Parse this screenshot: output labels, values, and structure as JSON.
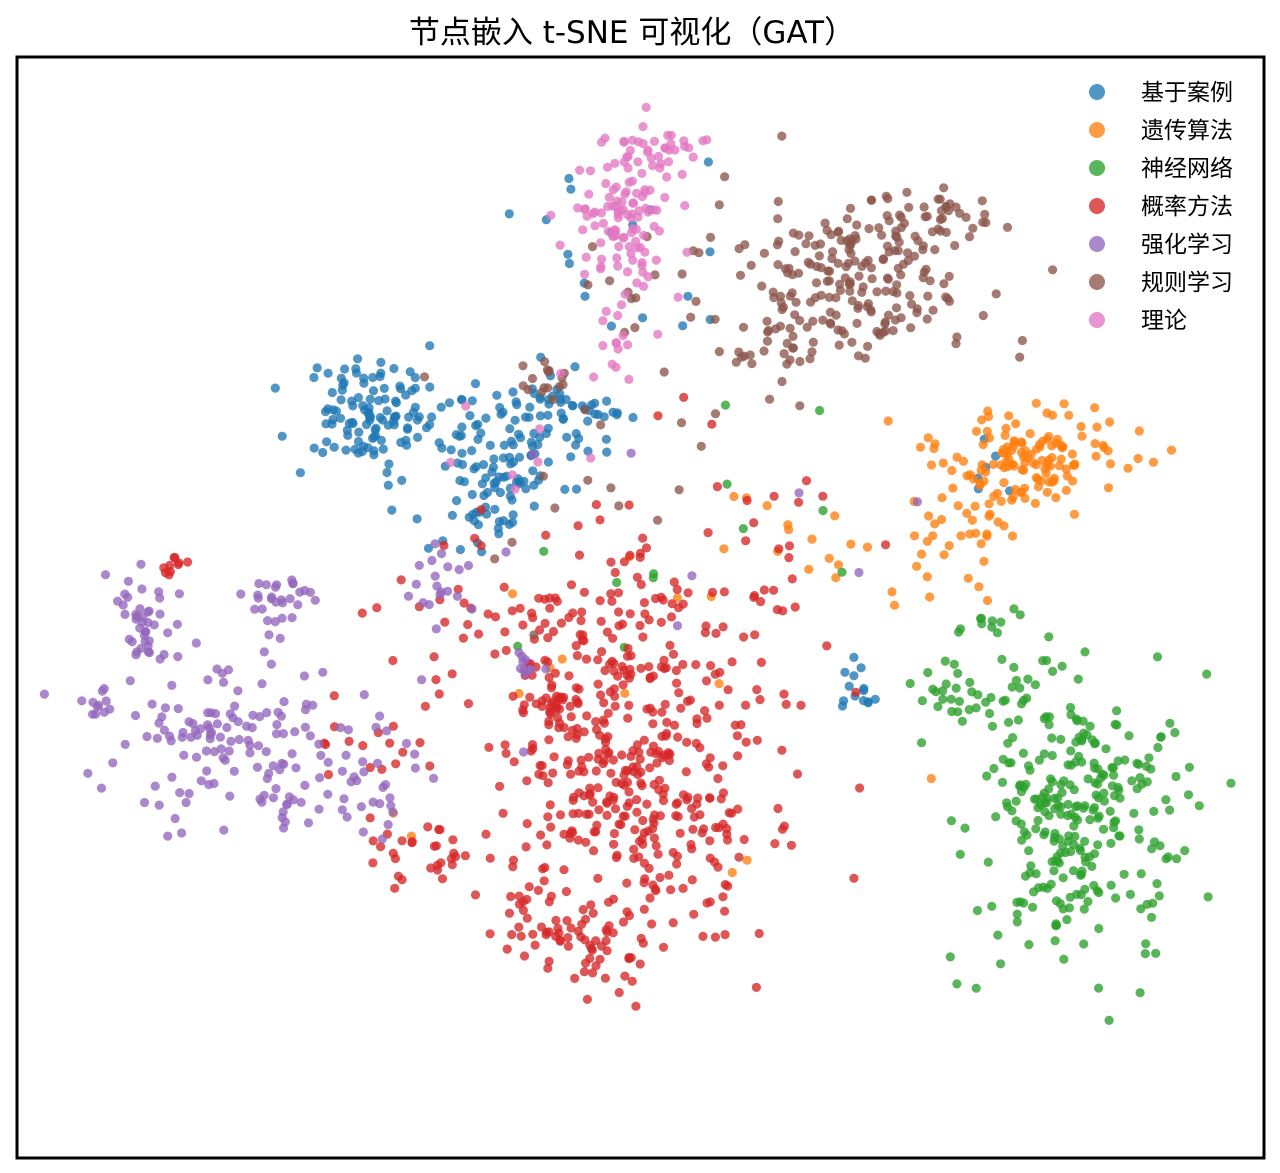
{
  "chart_data": {
    "type": "scatter",
    "title": "节点嵌入 t-SNE 可视化（GAT）",
    "xlabel": "",
    "ylabel": "",
    "xlim": [
      -100,
      100
    ],
    "ylim": [
      -100,
      100
    ],
    "axes_visible": false,
    "grid": false,
    "legend_position": "top-right",
    "marker_alpha": 0.78,
    "series": [
      {
        "name": "基于案例",
        "color": "#1f77b4",
        "clusters": [
          {
            "cx": -47,
            "cy": 38,
            "sx": 6.5,
            "sy": 5.5,
            "n": 115
          },
          {
            "cx": -25,
            "cy": 30,
            "sx": 6,
            "sy": 6,
            "n": 90
          },
          {
            "cx": -12,
            "cy": 38,
            "sx": 5,
            "sy": 4,
            "n": 45
          },
          {
            "cx": -31,
            "cy": 17,
            "sx": 5,
            "sy": 4,
            "n": 25
          },
          {
            "cx": -3,
            "cy": 72,
            "sx": 10,
            "sy": 14,
            "n": 18
          },
          {
            "cx": 37,
            "cy": -17,
            "sx": 3,
            "sy": 2.5,
            "n": 14
          },
          {
            "cx": 60,
            "cy": 25,
            "sx": 4,
            "sy": 3,
            "n": 6
          }
        ]
      },
      {
        "name": "遗传算法",
        "color": "#ff7f0e",
        "clusters": [
          {
            "cx": 67,
            "cy": 28,
            "sx": 9,
            "sy": 5,
            "n": 120
          },
          {
            "cx": 57,
            "cy": 13,
            "sx": 6,
            "sy": 5,
            "n": 35
          },
          {
            "cx": 76,
            "cy": 35,
            "sx": 4,
            "sy": 4,
            "n": 15
          },
          {
            "cx": 28,
            "cy": 12,
            "sx": 7,
            "sy": 6,
            "n": 16
          },
          {
            "cx": 5,
            "cy": -15,
            "sx": 25,
            "sy": 22,
            "n": 14
          }
        ]
      },
      {
        "name": "神经网络",
        "color": "#2ca02c",
        "clusters": [
          {
            "cx": 76,
            "cy": -42,
            "sx": 9.5,
            "sy": 14,
            "n": 285
          },
          {
            "cx": 57,
            "cy": -18,
            "sx": 6,
            "sy": 5,
            "n": 35
          },
          {
            "cx": 62,
            "cy": -3,
            "sx": 2.5,
            "sy": 2,
            "n": 10
          },
          {
            "cx": 8,
            "cy": 15,
            "sx": 16,
            "sy": 18,
            "n": 12
          }
        ]
      },
      {
        "name": "概率方法",
        "color": "#d62728",
        "clusters": [
          {
            "cx": 0,
            "cy": -35,
            "sx": 12,
            "sy": 14,
            "n": 330
          },
          {
            "cx": -7,
            "cy": -67,
            "sx": 6,
            "sy": 6,
            "n": 55
          },
          {
            "cx": -7,
            "cy": -5,
            "sx": 17,
            "sy": 10,
            "n": 150
          },
          {
            "cx": -18,
            "cy": -60,
            "sx": 5,
            "sy": 5,
            "n": 32
          },
          {
            "cx": -38,
            "cy": -50,
            "sx": 6,
            "sy": 4,
            "n": 30
          },
          {
            "cx": -14,
            "cy": -20,
            "sx": 3,
            "sy": 2,
            "n": 20
          },
          {
            "cx": -82,
            "cy": 8,
            "sx": 1.5,
            "sy": 1.5,
            "n": 10
          },
          {
            "cx": -45,
            "cy": -30,
            "sx": 6,
            "sy": 4,
            "n": 15
          },
          {
            "cx": 15,
            "cy": 15,
            "sx": 15,
            "sy": 15,
            "n": 22
          }
        ]
      },
      {
        "name": "强化学习",
        "color": "#9467bd",
        "clusters": [
          {
            "cx": -70,
            "cy": -28,
            "sx": 13,
            "sy": 8,
            "n": 150
          },
          {
            "cx": -87,
            "cy": -3,
            "sx": 2.5,
            "sy": 4,
            "n": 40
          },
          {
            "cx": -63,
            "cy": 2,
            "sx": 4,
            "sy": 3,
            "n": 28
          },
          {
            "cx": -50,
            "cy": -38,
            "sx": 6,
            "sy": 5,
            "n": 22
          },
          {
            "cx": -35,
            "cy": 5,
            "sx": 3,
            "sy": 4,
            "n": 18
          },
          {
            "cx": -20,
            "cy": -12,
            "sx": 2,
            "sy": 1.5,
            "n": 10
          },
          {
            "cx": -95,
            "cy": -20,
            "sx": 1.5,
            "sy": 1.5,
            "n": 8
          },
          {
            "cx": 5,
            "cy": 10,
            "sx": 25,
            "sy": 20,
            "n": 10
          }
        ]
      },
      {
        "name": "规则学习",
        "color": "#8c564b",
        "clusters": [
          {
            "cx": 38,
            "cy": 65,
            "sx": 11,
            "sy": 8,
            "n": 190
          },
          {
            "cx": 52,
            "cy": 77,
            "sx": 5,
            "sy": 3,
            "n": 35
          },
          {
            "cx": 25,
            "cy": 50,
            "sx": 6,
            "sy": 4,
            "n": 30
          },
          {
            "cx": 0,
            "cy": 62,
            "sx": 4,
            "sy": 5,
            "n": 10
          },
          {
            "cx": -17,
            "cy": 45,
            "sx": 3,
            "sy": 3,
            "n": 16
          },
          {
            "cx": -15,
            "cy": 25,
            "sx": 12,
            "sy": 10,
            "n": 10
          },
          {
            "cx": 10,
            "cy": 40,
            "sx": 10,
            "sy": 12,
            "n": 10
          }
        ]
      },
      {
        "name": "理论",
        "color": "#e377c2",
        "clusters": [
          {
            "cx": -2,
            "cy": 75,
            "sx": 4.5,
            "sy": 7,
            "n": 105
          },
          {
            "cx": 3,
            "cy": 90,
            "sx": 5,
            "sy": 2,
            "n": 30
          },
          {
            "cx": -3,
            "cy": 52,
            "sx": 3,
            "sy": 3,
            "n": 14
          },
          {
            "cx": -10,
            "cy": 30,
            "sx": 10,
            "sy": 12,
            "n": 8
          }
        ]
      }
    ]
  }
}
